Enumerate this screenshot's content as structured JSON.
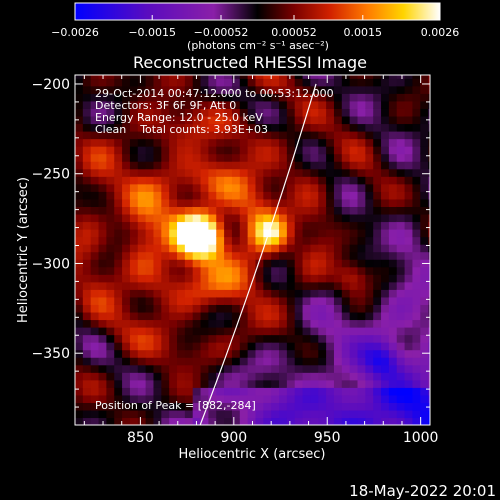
{
  "chart_data": {
    "type": "heatmap",
    "title": "Reconstructed RHESSI Image",
    "xlabel": "Heliocentric X (arcsec)",
    "ylabel": "Heliocentric Y (arcsec)",
    "xlim": [
      815,
      1005
    ],
    "ylim": [
      -390,
      -195
    ],
    "x_ticks": [
      850,
      900,
      950,
      1000
    ],
    "x_tick_labels": [
      "850",
      "900",
      "950",
      "1000"
    ],
    "y_ticks": [
      -200,
      -250,
      -300,
      -350
    ],
    "y_tick_labels": [
      "−200",
      "−250",
      "−300",
      "−350"
    ],
    "colorbar": {
      "range": [
        -0.0026,
        0.0026
      ],
      "ticks": [
        -0.0026,
        -0.0015,
        -0.00052,
        0.00052,
        0.0015,
        0.0026
      ],
      "tick_labels": [
        "−0.0026",
        "−0.0015",
        "−0.00052",
        "0.00052",
        "0.0015",
        "0.0026"
      ],
      "unit_label": "(photons cm⁻² s⁻¹ asec⁻²)",
      "colormap": [
        "#0000ff",
        "#5a0cbf",
        "#8a1fa8",
        "#000000",
        "#7a0000",
        "#d22200",
        "#ff7a00",
        "#ffd400",
        "#ffffff"
      ]
    },
    "peak": {
      "x": 882,
      "y": -284
    },
    "secondary_sources": [
      {
        "x": 920,
        "y": -283,
        "relative": 0.55
      },
      {
        "x": 963,
        "y": -307,
        "relative": 0.45
      },
      {
        "x": 980,
        "y": -353,
        "relative": -0.45
      }
    ],
    "limb_curve": [
      [
        882,
        -390
      ],
      [
        915,
        -300
      ],
      [
        944,
        -200
      ]
    ],
    "annotations": [
      "29-Oct-2014 00:47:12.000 to 00:53:12.000",
      "Detectors: 3F 6F 9F, Att 0",
      "Energy Range: 12.0 - 25.0 keV",
      "Clean    Total counts: 3.93E+03",
      "Position of Peak = [882,-284]"
    ],
    "footer": "18-May-2022 20:01"
  }
}
